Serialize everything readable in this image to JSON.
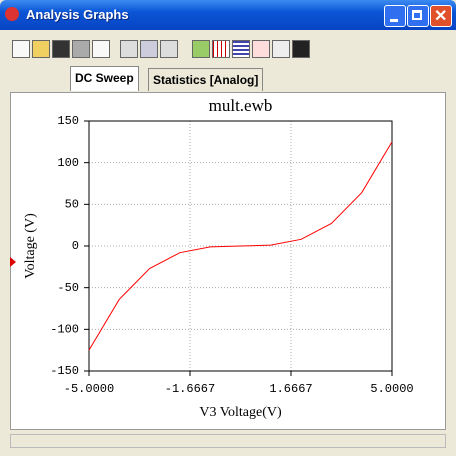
{
  "window": {
    "title": "Analysis Graphs"
  },
  "tabs": [
    "DC Sweep",
    "Statistics [Analog]"
  ],
  "chart_data": {
    "type": "line",
    "title": "mult.ewb",
    "x_label": "V3 Voltage(V)",
    "y_label": "Voltage (V)",
    "x": [
      -5,
      -4,
      -3,
      -2,
      -1,
      0,
      1,
      2,
      3,
      4,
      5
    ],
    "series": [
      {
        "name": "Voltage",
        "color": "#ff0000",
        "values": [
          -125,
          -64,
          -27,
          -8,
          -1,
          0,
          1,
          8,
          27,
          64,
          125
        ]
      }
    ],
    "xlim": [
      -5,
      5
    ],
    "xticks": [
      {
        "value": -5,
        "label": "-5.0000"
      },
      {
        "value": -1.6667,
        "label": "-1.6667"
      },
      {
        "value": 1.6667,
        "label": "1.6667"
      },
      {
        "value": 5,
        "label": "5.0000"
      }
    ],
    "ylim": [
      -150,
      150
    ],
    "yticks": [
      -150,
      -100,
      -50,
      0,
      50,
      100,
      150
    ],
    "grid": true
  }
}
